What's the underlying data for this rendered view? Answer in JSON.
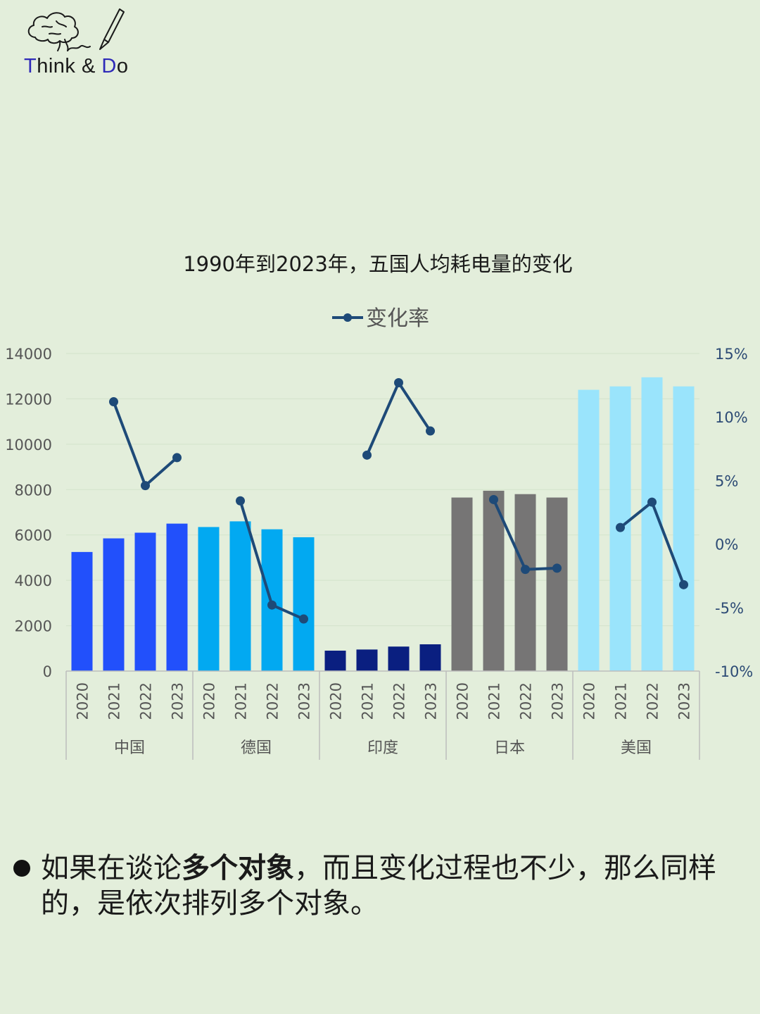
{
  "logo": {
    "text_accent1": "T",
    "text_mid1": "hink & ",
    "text_accent2": "D",
    "text_mid2": "o",
    "icon": "brain-and-pen-icon"
  },
  "chart_data": {
    "type": "bar",
    "title": "1990年到2023年，五国人均耗电量的变化",
    "legend": {
      "position": "top",
      "entries": [
        "变化率"
      ]
    },
    "years": [
      "2020",
      "2021",
      "2022",
      "2023"
    ],
    "groups": [
      {
        "name": "中国",
        "color": "#2250fb",
        "values": [
          5250,
          5850,
          6100,
          6500
        ],
        "rate": [
          null,
          11.2,
          4.6,
          6.8
        ]
      },
      {
        "name": "德国",
        "color": "#02a9f1",
        "values": [
          6350,
          6600,
          6250,
          5900
        ],
        "rate": [
          null,
          3.4,
          -4.8,
          -5.9
        ]
      },
      {
        "name": "印度",
        "color": "#0a1f80",
        "values": [
          900,
          950,
          1080,
          1180
        ],
        "rate": [
          null,
          7.0,
          12.7,
          8.9
        ]
      },
      {
        "name": "日本",
        "color": "#767575",
        "values": [
          7650,
          7950,
          7800,
          7650
        ],
        "rate": [
          null,
          3.5,
          -2.0,
          -1.9
        ]
      },
      {
        "name": "美国",
        "color": "#9ae4fc",
        "values": [
          12400,
          12550,
          12950,
          12550
        ],
        "rate": [
          null,
          1.3,
          3.3,
          -3.2
        ]
      }
    ],
    "y_left": {
      "min": 0,
      "max": 14000,
      "ticks": [
        "0",
        "2000",
        "4000",
        "6000",
        "8000",
        "10000",
        "12000",
        "14000"
      ]
    },
    "y_right": {
      "min": -10,
      "max": 15,
      "ticks": [
        "-10%",
        "-5%",
        "0%",
        "5%",
        "10%",
        "15%"
      ]
    },
    "line_color": "#1e4a78",
    "grid": true
  },
  "bullet": {
    "part1": "如果在谈论",
    "bold": "多个对象",
    "part2": "，而且变化过程也不少，那么同样的，是依次排列多个对象。"
  }
}
